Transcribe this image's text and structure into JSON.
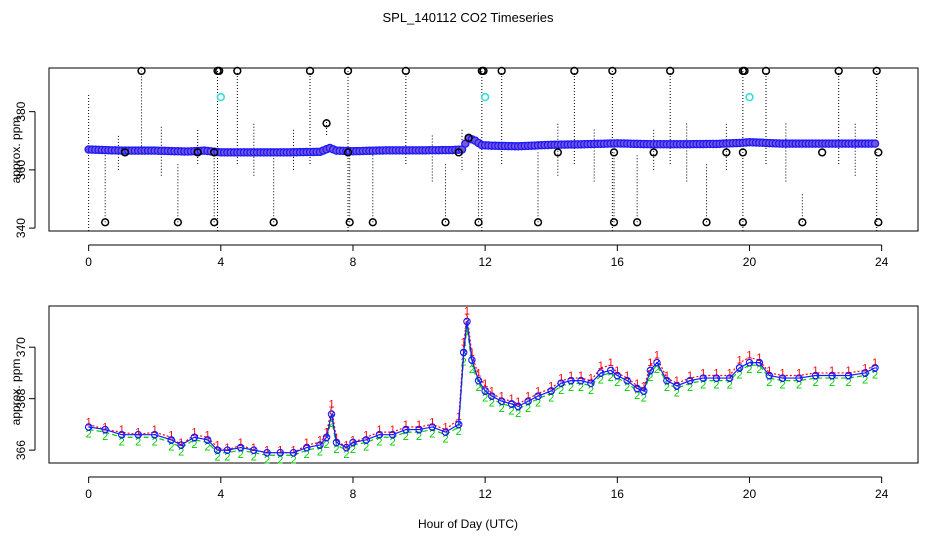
{
  "figure": {
    "title": "SPL_140112  CO2 Timeseries",
    "xlabel": "Hour of Day (UTC)"
  },
  "colors": {
    "outlier": "#000000",
    "flagged": "#33dddd",
    "main": "#1a1aff",
    "series1": "#ff0000",
    "series2": "#00cc00",
    "series3": "#1a1aff",
    "fill": "#7a55d8"
  },
  "chart_data": [
    {
      "type": "scatter",
      "name": "top-panel",
      "ylabel": "approx. ppm",
      "xlim": [
        -1.2,
        25.1
      ],
      "ylim": [
        339,
        395
      ],
      "xticks": [
        "0",
        "4",
        "8",
        "12",
        "16",
        "20",
        "24"
      ],
      "yticks": [
        "340",
        "360",
        "380"
      ],
      "baseline": {
        "x": [
          0,
          1,
          2,
          3,
          3.5,
          4,
          5,
          6,
          7,
          7.3,
          7.5,
          8,
          9,
          10,
          11,
          11.3,
          11.5,
          11.7,
          11.9,
          12.2,
          13,
          14,
          15,
          16,
          17,
          18,
          19,
          19.8,
          20,
          21,
          22,
          23,
          23.8
        ],
        "y": [
          367,
          366.6,
          366.6,
          366.3,
          366.6,
          366,
          366,
          366,
          366.2,
          367.5,
          366.6,
          366.4,
          366.7,
          366.7,
          366.8,
          367,
          371,
          370,
          368.5,
          368.3,
          368.1,
          368.6,
          368.8,
          369.1,
          368.8,
          368.8,
          368.9,
          369.3,
          369.5,
          369,
          369,
          369,
          369
        ]
      },
      "high_outliers": {
        "x": [
          1.6,
          3.9,
          3.95,
          4.5,
          6.7,
          7.85,
          9.6,
          11.9,
          11.95,
          12.5,
          14.7,
          15.85,
          17.6,
          19.8,
          19.85,
          20.5,
          22.7,
          23.85
        ],
        "y": [
          394,
          394,
          394,
          394,
          394,
          394,
          394,
          394,
          394,
          394,
          394,
          394,
          394,
          394,
          394,
          394,
          394,
          394
        ]
      },
      "low_outliers": {
        "x": [
          0.5,
          2.7,
          3.8,
          5.6,
          7.9,
          8.6,
          10.8,
          11.8,
          13.6,
          15.9,
          16.6,
          18.7,
          19.8,
          21.6,
          23.9
        ],
        "y": [
          342,
          342,
          342,
          342,
          342,
          342,
          342,
          342,
          342,
          342,
          342,
          342,
          342,
          342,
          342
        ]
      },
      "mid_outliers": {
        "x": [
          1.1,
          3.3,
          3.8,
          7.2,
          7.85,
          11.2,
          11.5,
          14.2,
          15.9,
          17.1,
          19.3,
          19.8,
          22.2,
          23.9
        ],
        "y": [
          366,
          366,
          366,
          376,
          366,
          366,
          371,
          366,
          366,
          366,
          366,
          366,
          366,
          366
        ]
      },
      "flagged_points": {
        "x": [
          4.0,
          12.0,
          20.0
        ],
        "y": [
          385,
          385,
          385
        ]
      },
      "vertical_ranges": {
        "x": [
          0,
          0.5,
          0.9,
          1.6,
          2.2,
          2.7,
          3.3,
          3.8,
          3.9,
          4.5,
          5.0,
          5.6,
          6.2,
          6.7,
          7.2,
          7.85,
          7.9,
          8.6,
          9.6,
          10.4,
          10.8,
          11.3,
          11.8,
          11.9,
          12.5,
          13.6,
          14.2,
          14.7,
          15.3,
          15.85,
          15.9,
          16.6,
          17.1,
          17.6,
          18.1,
          18.7,
          19.3,
          19.8,
          20.5,
          21.1,
          21.6,
          22.7,
          23.2,
          23.85
        ],
        "ymin": [
          339,
          342,
          360,
          366,
          358,
          342,
          362,
          342,
          339,
          362,
          358,
          342,
          360,
          362,
          372,
          339,
          342,
          342,
          362,
          356,
          342,
          360,
          342,
          339,
          362,
          342,
          358,
          362,
          356,
          339,
          342,
          342,
          360,
          362,
          356,
          342,
          360,
          339,
          362,
          356,
          342,
          362,
          358,
          339
        ],
        "ymax": [
          386,
          366,
          372,
          394,
          375,
          362,
          374,
          366,
          394,
          394,
          376,
          365,
          374,
          394,
          378,
          394,
          366,
          366,
          394,
          372,
          362,
          374,
          366,
          394,
          394,
          366,
          376,
          394,
          374,
          394,
          366,
          365,
          374,
          394,
          376,
          362,
          376,
          394,
          394,
          376,
          352,
          394,
          376,
          394
        ]
      }
    },
    {
      "type": "line",
      "name": "bottom-panel",
      "ylabel": "approx. ppm",
      "xlim": [
        -1.2,
        25.1
      ],
      "ylim": [
        365.5,
        371.6
      ],
      "xticks": [
        "0",
        "4",
        "8",
        "12",
        "16",
        "20",
        "24"
      ],
      "yticks": [
        "366",
        "368",
        "370"
      ],
      "x": [
        0,
        0.5,
        1,
        1.5,
        2,
        2.5,
        2.8,
        3.2,
        3.6,
        3.9,
        4.2,
        4.6,
        5,
        5.4,
        5.8,
        6.2,
        6.6,
        7,
        7.2,
        7.35,
        7.5,
        7.8,
        8,
        8.4,
        8.8,
        9.2,
        9.6,
        10,
        10.4,
        10.8,
        11.2,
        11.35,
        11.45,
        11.6,
        11.8,
        12,
        12.2,
        12.5,
        12.8,
        13,
        13.3,
        13.6,
        14,
        14.3,
        14.6,
        14.9,
        15.2,
        15.5,
        15.8,
        16,
        16.3,
        16.6,
        16.8,
        17,
        17.2,
        17.5,
        17.8,
        18.2,
        18.6,
        19,
        19.4,
        19.7,
        20,
        20.3,
        20.6,
        21,
        21.5,
        22,
        22.5,
        23,
        23.5,
        23.8
      ],
      "series": [
        {
          "name": "1",
          "values": [
            367.0,
            366.8,
            366.7,
            366.6,
            366.7,
            366.5,
            366.2,
            366.6,
            366.5,
            366.1,
            366.0,
            366.2,
            366.0,
            365.9,
            365.9,
            365.9,
            366.2,
            366.3,
            366.6,
            367.7,
            366.4,
            366.1,
            366.3,
            366.5,
            366.7,
            366.7,
            366.9,
            366.9,
            367.0,
            366.8,
            367.2,
            370.1,
            371.3,
            369.7,
            368.9,
            368.5,
            368.2,
            368.0,
            367.9,
            367.8,
            368.0,
            368.2,
            368.4,
            368.7,
            368.8,
            368.8,
            368.7,
            369.2,
            369.3,
            369.0,
            368.8,
            368.5,
            368.4,
            369.3,
            369.6,
            368.8,
            368.6,
            368.8,
            368.9,
            368.9,
            368.9,
            369.4,
            369.6,
            369.5,
            369.0,
            368.9,
            368.9,
            369.0,
            369.0,
            369.0,
            369.1,
            369.3
          ]
        },
        {
          "name": "2",
          "values": [
            366.8,
            366.7,
            366.5,
            366.5,
            366.5,
            366.3,
            366.1,
            366.4,
            366.3,
            365.9,
            365.9,
            366.0,
            365.9,
            365.8,
            365.8,
            365.8,
            366.0,
            366.1,
            366.4,
            367.2,
            366.2,
            366.0,
            366.2,
            366.3,
            366.5,
            366.5,
            366.7,
            366.7,
            366.8,
            366.6,
            366.9,
            369.6,
            370.8,
            369.3,
            368.6,
            368.2,
            368.0,
            367.8,
            367.7,
            367.6,
            367.8,
            368.0,
            368.2,
            368.5,
            368.6,
            368.6,
            368.5,
            368.9,
            369.0,
            368.8,
            368.6,
            368.3,
            368.2,
            369.0,
            369.3,
            368.6,
            368.4,
            368.6,
            368.7,
            368.7,
            368.7,
            369.1,
            369.3,
            369.3,
            368.8,
            368.7,
            368.7,
            368.8,
            368.8,
            368.8,
            368.9,
            369.1
          ]
        },
        {
          "name": "3",
          "values": [
            366.9,
            366.8,
            366.6,
            366.6,
            366.6,
            366.4,
            366.2,
            366.5,
            366.4,
            366.0,
            366.0,
            366.1,
            366.0,
            365.9,
            365.9,
            365.9,
            366.1,
            366.2,
            366.5,
            367.4,
            366.3,
            366.1,
            366.3,
            366.4,
            366.6,
            366.6,
            366.8,
            366.8,
            366.9,
            366.7,
            367.0,
            369.8,
            371.0,
            369.5,
            368.7,
            368.3,
            368.1,
            367.9,
            367.8,
            367.7,
            367.9,
            368.1,
            368.3,
            368.6,
            368.7,
            368.7,
            368.6,
            369.0,
            369.1,
            368.9,
            368.7,
            368.4,
            368.3,
            369.1,
            369.4,
            368.7,
            368.5,
            368.7,
            368.8,
            368.8,
            368.8,
            369.2,
            369.4,
            369.4,
            368.9,
            368.8,
            368.8,
            368.9,
            368.9,
            368.9,
            369.0,
            369.2
          ]
        }
      ]
    }
  ]
}
